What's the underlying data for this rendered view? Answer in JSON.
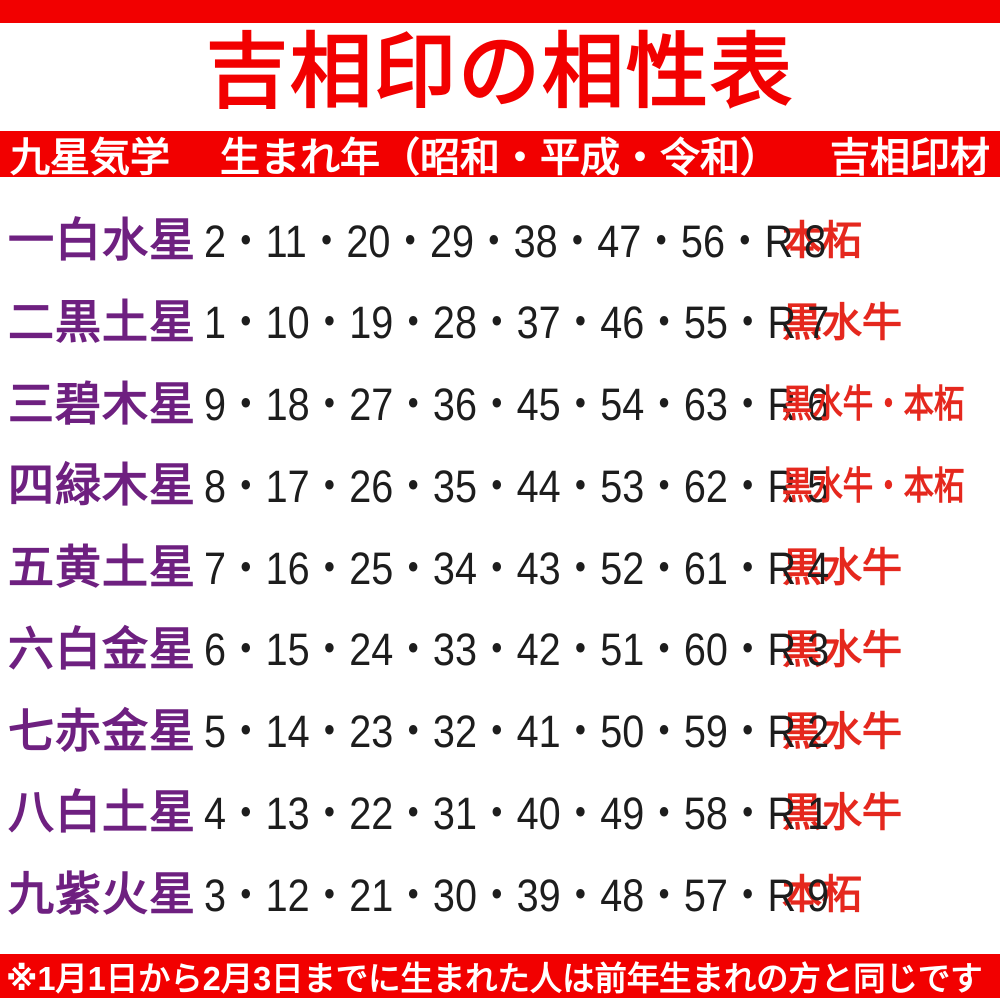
{
  "colors": {
    "accent_red": "#f20000",
    "material_red": "#e5281e",
    "star_purple": "#6e2080",
    "number_black": "#1d1d1d",
    "band_text": "#ffffff"
  },
  "title": "吉相印の相性表",
  "header": {
    "col_star": "九星気学",
    "col_years": "生まれ年（昭和・平成・令和）",
    "col_material": "吉相印材"
  },
  "table": {
    "rows": [
      {
        "star": "一白水星",
        "years": "2・11・20・29・38・47・56・R 8",
        "material": "本柘"
      },
      {
        "star": "二黒土星",
        "years": "1・10・19・28・37・46・55・R 7",
        "material": "黒水牛"
      },
      {
        "star": "三碧木星",
        "years": "9・18・27・36・45・54・63・R 6",
        "material": "黒水牛・本柘"
      },
      {
        "star": "四緑木星",
        "years": "8・17・26・35・44・53・62・R 5",
        "material": "黒水牛・本柘"
      },
      {
        "star": "五黄土星",
        "years": "7・16・25・34・43・52・61・R 4",
        "material": "黒水牛"
      },
      {
        "star": "六白金星",
        "years": "6・15・24・33・42・51・60・R 3",
        "material": "黒水牛"
      },
      {
        "star": "七赤金星",
        "years": "5・14・23・32・41・50・59・R 2",
        "material": "黒水牛"
      },
      {
        "star": "八白土星",
        "years": "4・13・22・31・40・49・58・R 1",
        "material": "黒水牛"
      },
      {
        "star": "九紫火星",
        "years": "3・12・21・30・39・48・57・R 9",
        "material": "本柘"
      }
    ]
  },
  "footnote": "※1月1日から2月3日までに生まれた人は前年生まれの方と同じです"
}
